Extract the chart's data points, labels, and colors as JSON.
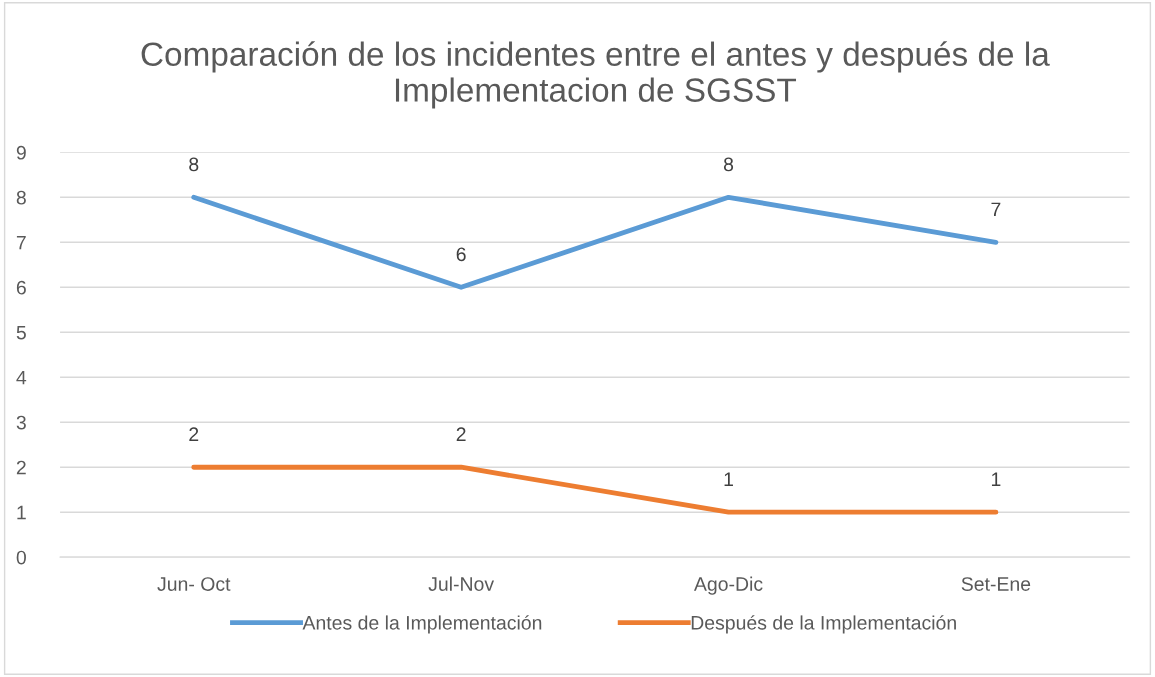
{
  "chart_data": {
    "type": "line",
    "title": "Comparación de los incidentes entre el antes y después de la Implementacion de SGSST",
    "categories": [
      "Jun- Oct",
      "Jul-Nov",
      "Ago-Dic",
      "Set-Ene"
    ],
    "series": [
      {
        "name": "Antes de la Implementación",
        "color": "#5b9bd5",
        "values": [
          8,
          6,
          8,
          7
        ]
      },
      {
        "name": "Después de la Implementación",
        "color": "#ed7d31",
        "values": [
          2,
          2,
          1,
          1
        ]
      }
    ],
    "ylim": [
      0,
      9
    ],
    "yticks": [
      0,
      1,
      2,
      3,
      4,
      5,
      6,
      7,
      8,
      9
    ],
    "grid": "y",
    "legend": "bottom",
    "data_labels": true,
    "marker": "none",
    "line_style": "solid"
  }
}
